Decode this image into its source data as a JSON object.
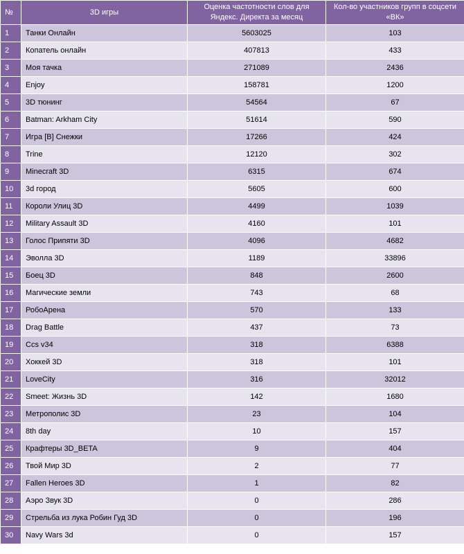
{
  "header": {
    "num": "№",
    "game": "3D игры",
    "freq": "Оценка частотности слов для Яндекс. Директа за месяц",
    "vk": "Кол-во участников групп в соцсети «ВК»"
  },
  "rows": [
    {
      "n": "1",
      "game": "Танки Онлайн",
      "freq": "5603025",
      "vk": "103"
    },
    {
      "n": "2",
      "game": "Копатель онлайн",
      "freq": "407813",
      "vk": "433"
    },
    {
      "n": "3",
      "game": "Моя тачка",
      "freq": "271089",
      "vk": "2436"
    },
    {
      "n": "4",
      "game": "Enjoy",
      "freq": "158781",
      "vk": "1200"
    },
    {
      "n": "5",
      "game": "3D тюнинг",
      "freq": "54564",
      "vk": "67"
    },
    {
      "n": "6",
      "game": "Batman: Arkham City",
      "freq": "51614",
      "vk": "590"
    },
    {
      "n": "7",
      "game": "Игра [В] Снежки",
      "freq": "17266",
      "vk": "424"
    },
    {
      "n": "8",
      "game": "Trine",
      "freq": "12120",
      "vk": "302"
    },
    {
      "n": "9",
      "game": "Minecraft 3D",
      "freq": "6315",
      "vk": "674"
    },
    {
      "n": "10",
      "game": "3d город",
      "freq": "5605",
      "vk": "600"
    },
    {
      "n": "11",
      "game": "Короли Улиц 3D",
      "freq": "4499",
      "vk": "1039"
    },
    {
      "n": "12",
      "game": "Military Assault 3D",
      "freq": "4160",
      "vk": "101"
    },
    {
      "n": "13",
      "game": "Голос Припяти 3D",
      "freq": "4096",
      "vk": "4682"
    },
    {
      "n": "14",
      "game": "Эволла 3D",
      "freq": "1189",
      "vk": "33896"
    },
    {
      "n": "15",
      "game": "Боец 3D",
      "freq": "848",
      "vk": "2600"
    },
    {
      "n": "16",
      "game": "Магические земли",
      "freq": "743",
      "vk": "68"
    },
    {
      "n": "17",
      "game": "РобоАрена",
      "freq": "570",
      "vk": "133"
    },
    {
      "n": "18",
      "game": "Drag Battle",
      "freq": "437",
      "vk": "73"
    },
    {
      "n": "19",
      "game": "Ccs v34",
      "freq": "318",
      "vk": "6388"
    },
    {
      "n": "20",
      "game": "Хоккей 3D",
      "freq": "318",
      "vk": "101"
    },
    {
      "n": "21",
      "game": "LoveCity",
      "freq": "316",
      "vk": "32012"
    },
    {
      "n": "22",
      "game": "Smeet: Жизнь 3D",
      "freq": "142",
      "vk": "1680"
    },
    {
      "n": "23",
      "game": "Метрополис 3D",
      "freq": "23",
      "vk": "104"
    },
    {
      "n": "24",
      "game": "8th day",
      "freq": "10",
      "vk": "157"
    },
    {
      "n": "25",
      "game": "Крафтеры 3D_BETA",
      "freq": "9",
      "vk": "404"
    },
    {
      "n": "26",
      "game": "Твой Мир 3D",
      "freq": "2",
      "vk": "77"
    },
    {
      "n": "27",
      "game": "Fallen Heroes 3D",
      "freq": "1",
      "vk": "82"
    },
    {
      "n": "28",
      "game": "Аэро Звук 3D",
      "freq": "0",
      "vk": "286"
    },
    {
      "n": "29",
      "game": "Стрельба из лука Робин Гуд 3D",
      "freq": "0",
      "vk": "196"
    },
    {
      "n": "30",
      "game": "Navy Wars 3d",
      "freq": "0",
      "vk": "157"
    }
  ],
  "colors": {
    "header_bg": "#8064a2",
    "row_odd": "#cdc5dc",
    "row_even": "#e7e3ef"
  }
}
